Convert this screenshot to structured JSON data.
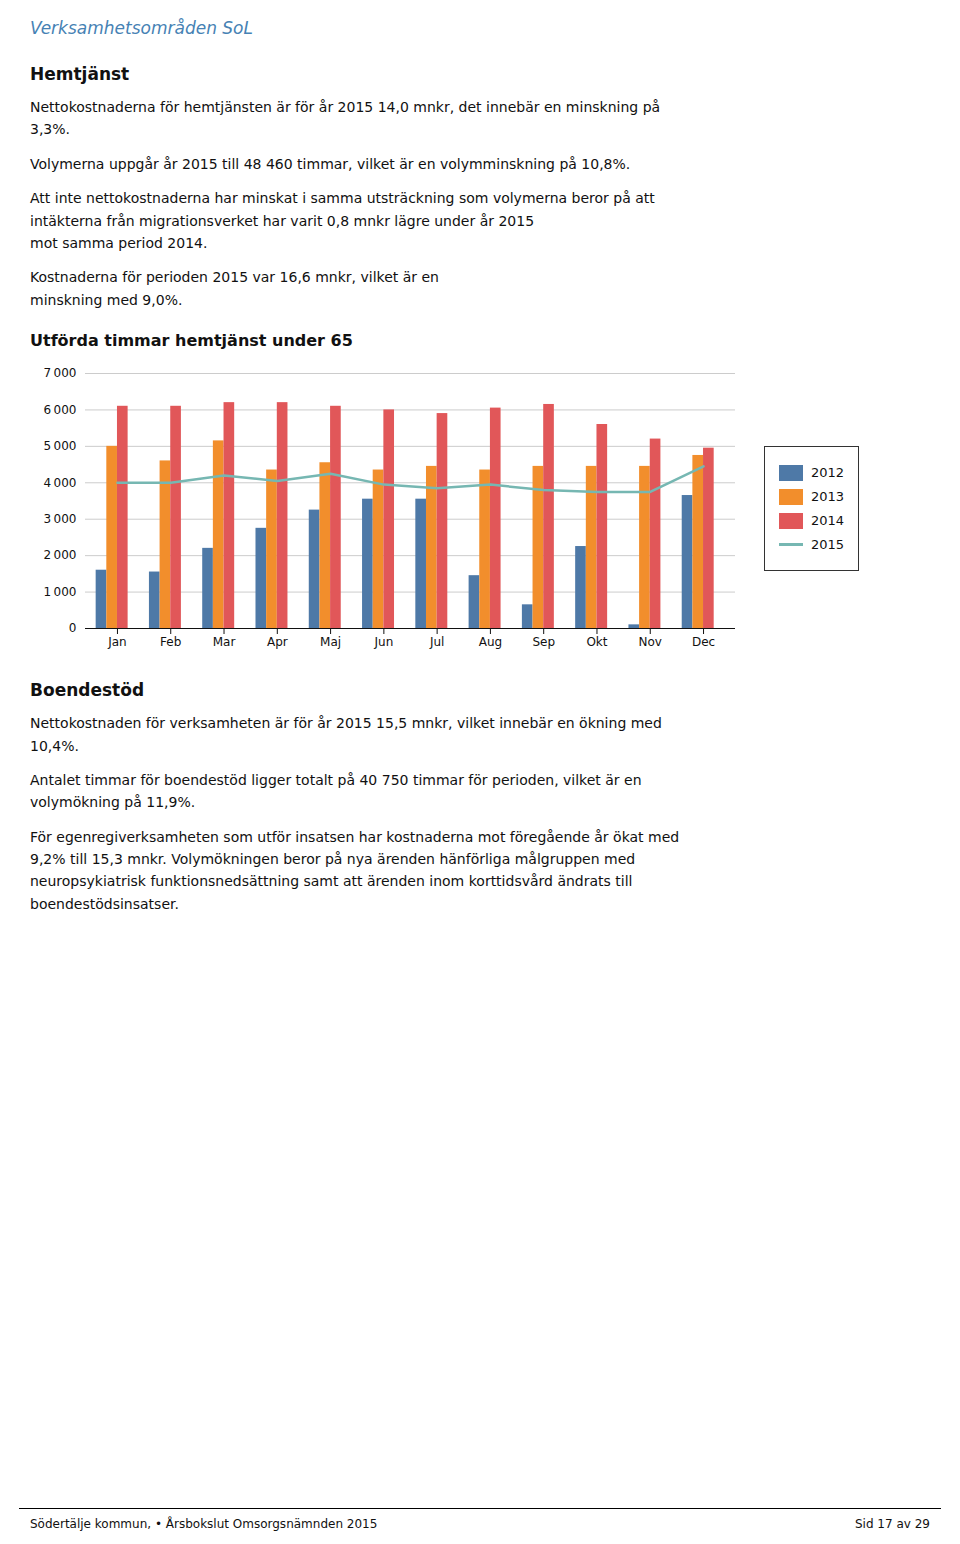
{
  "texts": {
    "page_title": "Verksamhetsområden SoL",
    "sections": [
      {
        "heading": "Hemtjänst",
        "paragraphs": [
          "Nettokostnaderna för hemtjänsten är för år 2015 14,0 mnkr, det innebär en minskning på\n3,3%.",
          "Volymerna uppgår år 2015 till 48 460 timmar, vilket är en volymminskning på 10,8%.",
          "Att inte nettokostnaderna har minskat i samma utsträckning som volymerna beror på att\nintäkterna från migrationsverket har varit 0,8 mnkr lägre under år 2015\nmot samma period 2014.",
          "Kostnaderna för perioden 2015 var 16,6 mnkr, vilket är en\nminskning med 9,0%."
        ]
      },
      {
        "heading": "Boendestöd",
        "paragraphs": [
          "Nettokostnaden för verksamheten är för år 2015 15,5 mnkr, vilket innebär en ökning med\n10,4%.",
          "Antalet timmar för boendestöd ligger totalt på 40 750 timmar för perioden, vilket är en\nvolymökning på 11,9%.",
          "För egenregiverksamheten som utför insatsen har kostnaderna mot föregående år ökat med\n9,2% till 15,3 mnkr. Volymökningen beror på nya ärenden hänförliga målgruppen med\nneuropsykiatrisk funktionsnedsättning samt att ärenden inom korttidsvård ändrats till\nboendestödsinsatser."
        ]
      }
    ],
    "footer_left": "Södertälje kommun,  •  Årsbokslut Omsorgsnämnden 2015",
    "footer_right": "Sid 17 av 29"
  },
  "chart_data": {
    "type": "bar",
    "title": "Utförda timmar hemtjänst under 65",
    "categories": [
      "Jan",
      "Feb",
      "Mar",
      "Apr",
      "Maj",
      "Jun",
      "Jul",
      "Aug",
      "Sep",
      "Okt",
      "Nov",
      "Dec"
    ],
    "series": [
      {
        "name": "2012",
        "type": "bar",
        "values": [
          1600,
          1550,
          2200,
          2750,
          3250,
          3550,
          3550,
          1450,
          650,
          2250,
          100,
          3650
        ]
      },
      {
        "name": "2013",
        "type": "bar",
        "values": [
          5000,
          4600,
          5150,
          4350,
          4550,
          4350,
          4450,
          4350,
          4450,
          4450,
          4450,
          4750
        ]
      },
      {
        "name": "2014",
        "type": "bar",
        "values": [
          6100,
          6100,
          6200,
          6200,
          6100,
          6000,
          5900,
          6050,
          6150,
          5600,
          5200,
          4950
        ]
      },
      {
        "name": "2015",
        "type": "line",
        "values": [
          4000,
          4000,
          4200,
          4050,
          4250,
          3950,
          3850,
          3950,
          3800,
          3750,
          3750,
          4450
        ]
      }
    ],
    "ylim": [
      0,
      7000
    ],
    "yticks": [
      0,
      {
        "value": 1000,
        "label": "1 000"
      },
      {
        "value": 2000,
        "label": "2 000"
      },
      {
        "value": 3000,
        "label": "3 000"
      },
      {
        "value": 4000,
        "label": "4 000"
      },
      {
        "value": 5000,
        "label": "5 000"
      },
      {
        "value": 6000,
        "label": "6 000"
      },
      {
        "value": 7000,
        "label": "7 000"
      }
    ],
    "grid": true,
    "legend": "right"
  }
}
